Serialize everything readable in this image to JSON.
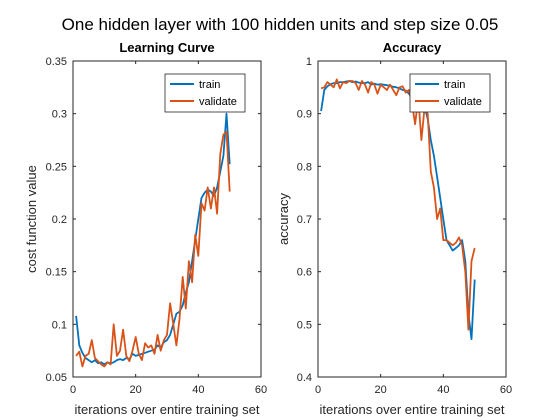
{
  "figure": {
    "suptitle": "One hidden layer with 100 hidden units and step size 0.05"
  },
  "colors": {
    "train": "#0072BD",
    "validate": "#D95319",
    "axis": "#262626",
    "background": "#ffffff"
  },
  "chart_data": [
    {
      "type": "line",
      "title": "Learning Curve",
      "xlabel": "iterations over entire training set",
      "ylabel": "cost function value",
      "xlim": [
        0,
        60
      ],
      "ylim": [
        0.05,
        0.35
      ],
      "xticks": [
        "0",
        "20",
        "40",
        "60"
      ],
      "yticks": [
        "0.05",
        "0.1",
        "0.15",
        "0.2",
        "0.25",
        "0.3",
        "0.35"
      ],
      "legend_location": "top-right",
      "grid": false,
      "series": [
        {
          "name": "train",
          "x": [
            1,
            2,
            3,
            4,
            5,
            6,
            7,
            8,
            9,
            10,
            11,
            12,
            13,
            14,
            15,
            16,
            17,
            18,
            19,
            20,
            21,
            22,
            23,
            24,
            25,
            26,
            27,
            28,
            29,
            30,
            31,
            32,
            33,
            34,
            35,
            36,
            37,
            38,
            39,
            40,
            41,
            42,
            43,
            44,
            45,
            46,
            47,
            48,
            49,
            50
          ],
          "y": [
            0.108,
            0.08,
            0.073,
            0.068,
            0.066,
            0.064,
            0.066,
            0.063,
            0.064,
            0.062,
            0.064,
            0.063,
            0.064,
            0.066,
            0.067,
            0.066,
            0.068,
            0.067,
            0.072,
            0.07,
            0.071,
            0.072,
            0.073,
            0.074,
            0.075,
            0.076,
            0.08,
            0.078,
            0.083,
            0.085,
            0.09,
            0.1,
            0.11,
            0.112,
            0.118,
            0.13,
            0.14,
            0.16,
            0.18,
            0.2,
            0.22,
            0.225,
            0.228,
            0.226,
            0.222,
            0.23,
            0.245,
            0.26,
            0.3,
            0.252
          ]
        },
        {
          "name": "validate",
          "x": [
            1,
            2,
            3,
            4,
            5,
            6,
            7,
            8,
            9,
            10,
            11,
            12,
            13,
            14,
            15,
            16,
            17,
            18,
            19,
            20,
            21,
            22,
            23,
            24,
            25,
            26,
            27,
            28,
            29,
            30,
            31,
            32,
            33,
            34,
            35,
            36,
            37,
            38,
            39,
            40,
            41,
            42,
            43,
            44,
            45,
            46,
            47,
            48,
            49,
            50
          ],
          "y": [
            0.07,
            0.074,
            0.06,
            0.07,
            0.072,
            0.085,
            0.068,
            0.065,
            0.062,
            0.06,
            0.064,
            0.062,
            0.1,
            0.07,
            0.075,
            0.095,
            0.07,
            0.065,
            0.075,
            0.088,
            0.072,
            0.066,
            0.082,
            0.078,
            0.08,
            0.072,
            0.09,
            0.075,
            0.085,
            0.09,
            0.12,
            0.1,
            0.08,
            0.105,
            0.145,
            0.115,
            0.16,
            0.14,
            0.185,
            0.165,
            0.215,
            0.208,
            0.23,
            0.21,
            0.23,
            0.205,
            0.262,
            0.28,
            0.283,
            0.226
          ]
        }
      ]
    },
    {
      "type": "line",
      "title": "Accuracy",
      "xlabel": "iterations over entire training set",
      "ylabel": "accuracy",
      "xlim": [
        0,
        60
      ],
      "ylim": [
        0.4,
        1
      ],
      "xticks": [
        "0",
        "20",
        "40",
        "60"
      ],
      "yticks": [
        "0.4",
        "0.5",
        "0.6",
        "0.7",
        "0.8",
        "0.9",
        "1"
      ],
      "legend_location": "top-right",
      "grid": false,
      "series": [
        {
          "name": "train",
          "x": [
            1,
            2,
            3,
            4,
            5,
            6,
            7,
            8,
            9,
            10,
            11,
            12,
            13,
            14,
            15,
            16,
            17,
            18,
            19,
            20,
            21,
            22,
            23,
            24,
            25,
            26,
            27,
            28,
            29,
            30,
            31,
            32,
            33,
            34,
            35,
            36,
            37,
            38,
            39,
            40,
            41,
            42,
            43,
            44,
            45,
            46,
            47,
            48,
            49,
            50
          ],
          "y": [
            0.905,
            0.945,
            0.952,
            0.956,
            0.958,
            0.958,
            0.96,
            0.96,
            0.961,
            0.962,
            0.96,
            0.961,
            0.959,
            0.958,
            0.958,
            0.96,
            0.955,
            0.957,
            0.955,
            0.956,
            0.955,
            0.954,
            0.953,
            0.951,
            0.95,
            0.948,
            0.945,
            0.944,
            0.938,
            0.93,
            0.925,
            0.915,
            0.905,
            0.915,
            0.89,
            0.85,
            0.82,
            0.78,
            0.74,
            0.7,
            0.66,
            0.65,
            0.64,
            0.645,
            0.65,
            0.66,
            0.62,
            0.52,
            0.472,
            0.585
          ]
        },
        {
          "name": "validate",
          "x": [
            1,
            2,
            3,
            4,
            5,
            6,
            7,
            8,
            9,
            10,
            11,
            12,
            13,
            14,
            15,
            16,
            17,
            18,
            19,
            20,
            21,
            22,
            23,
            24,
            25,
            26,
            27,
            28,
            29,
            30,
            31,
            32,
            33,
            34,
            35,
            36,
            37,
            38,
            39,
            40,
            41,
            42,
            43,
            44,
            45,
            46,
            47,
            48,
            49,
            50
          ],
          "y": [
            0.948,
            0.95,
            0.96,
            0.955,
            0.95,
            0.965,
            0.948,
            0.96,
            0.958,
            0.962,
            0.962,
            0.958,
            0.945,
            0.962,
            0.955,
            0.94,
            0.96,
            0.955,
            0.938,
            0.955,
            0.95,
            0.945,
            0.955,
            0.945,
            0.935,
            0.95,
            0.952,
            0.94,
            0.945,
            0.92,
            0.88,
            0.93,
            0.85,
            0.91,
            0.9,
            0.79,
            0.76,
            0.7,
            0.72,
            0.66,
            0.66,
            0.655,
            0.65,
            0.655,
            0.665,
            0.65,
            0.6,
            0.49,
            0.62,
            0.645
          ]
        }
      ]
    }
  ]
}
